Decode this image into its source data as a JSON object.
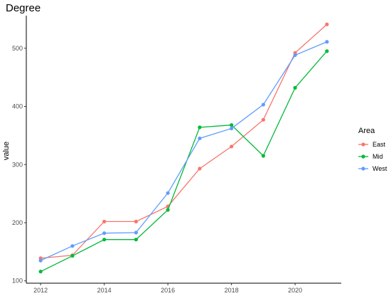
{
  "chart_data": {
    "type": "line",
    "title": "Degree",
    "xlabel": "",
    "ylabel": "value",
    "x": [
      2012,
      2013,
      2014,
      2015,
      2016,
      2017,
      2018,
      2019,
      2020,
      2021
    ],
    "xticks": [
      2012,
      2014,
      2016,
      2018,
      2020
    ],
    "yticks": [
      100,
      200,
      300,
      400,
      500
    ],
    "xlim": [
      2011.55,
      2021.45
    ],
    "ylim": [
      96,
      556
    ],
    "grid": false,
    "legend": {
      "title": "Area",
      "position": "right"
    },
    "series": [
      {
        "name": "East",
        "color": "#F8766D",
        "values": [
          139,
          144,
          202,
          202,
          228,
          293,
          331,
          377,
          492,
          541
        ]
      },
      {
        "name": "Mid",
        "color": "#00BA38",
        "values": [
          116,
          143,
          171,
          171,
          222,
          364,
          368,
          315,
          432,
          495
        ]
      },
      {
        "name": "West",
        "color": "#619CFF",
        "values": [
          135,
          160,
          182,
          183,
          251,
          345,
          362,
          403,
          488,
          511
        ]
      }
    ]
  }
}
